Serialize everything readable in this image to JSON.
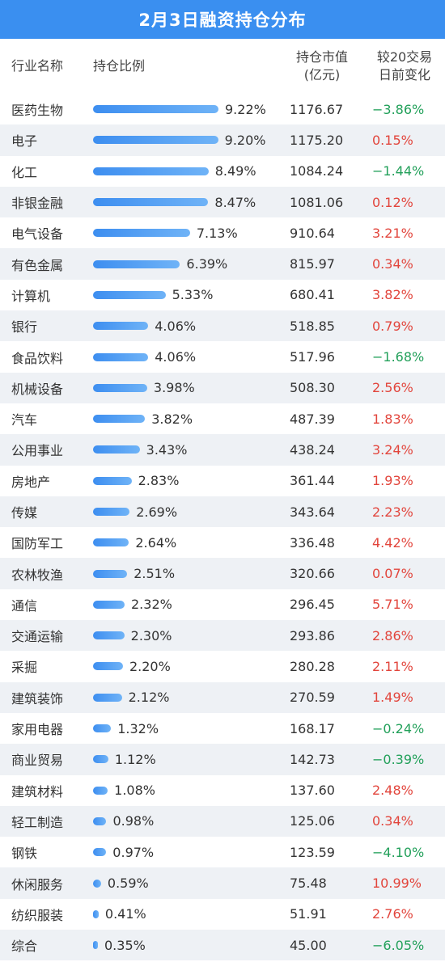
{
  "title": "2月3日融资持仓分布",
  "header": {
    "industry": "行业名称",
    "ratio": "持仓比例",
    "value_line1": "持仓市值",
    "value_line2": "(亿元)",
    "change_line1": "较20交易",
    "change_line2": "日前变化"
  },
  "colors": {
    "bar": "#3d8ef0",
    "up": "#e2453c",
    "down": "#22a05a",
    "title_bg": "#3a8ff0"
  },
  "chart_data": {
    "type": "bar",
    "title": "2月3日融资持仓分布",
    "categories": [
      "医药生物",
      "电子",
      "化工",
      "非银金融",
      "电气设备",
      "有色金属",
      "计算机",
      "银行",
      "食品饮料",
      "机械设备",
      "汽车",
      "公用事业",
      "房地产",
      "传媒",
      "国防军工",
      "农林牧渔",
      "通信",
      "交通运输",
      "采掘",
      "建筑装饰",
      "家用电器",
      "商业贸易",
      "建筑材料",
      "轻工制造",
      "钢铁",
      "休闲服务",
      "纺织服装",
      "综合"
    ],
    "ratio_labels": [
      "9.22%",
      "9.20%",
      "8.49%",
      "8.47%",
      "7.13%",
      "6.39%",
      "5.33%",
      "4.06%",
      "4.06%",
      "3.98%",
      "3.82%",
      "3.43%",
      "2.83%",
      "2.69%",
      "2.64%",
      "2.51%",
      "2.32%",
      "2.30%",
      "2.20%",
      "2.12%",
      "1.32%",
      "1.12%",
      "1.08%",
      "0.98%",
      "0.97%",
      "0.59%",
      "0.41%",
      "0.35%"
    ],
    "ratio_values": [
      9.22,
      9.2,
      8.49,
      8.47,
      7.13,
      6.39,
      5.33,
      4.06,
      4.06,
      3.98,
      3.82,
      3.43,
      2.83,
      2.69,
      2.64,
      2.51,
      2.32,
      2.3,
      2.2,
      2.12,
      1.32,
      1.12,
      1.08,
      0.98,
      0.97,
      0.59,
      0.41,
      0.35
    ],
    "market_values": [
      "1176.67",
      "1175.20",
      "1084.24",
      "1081.06",
      "910.64",
      "815.97",
      "680.41",
      "518.85",
      "517.96",
      "508.30",
      "487.39",
      "438.24",
      "361.44",
      "343.64",
      "336.48",
      "320.66",
      "296.45",
      "293.86",
      "280.28",
      "270.59",
      "168.17",
      "142.73",
      "137.60",
      "125.06",
      "123.59",
      "75.48",
      "51.91",
      "45.00"
    ],
    "changes": [
      "−3.86%",
      "0.15%",
      "−1.44%",
      "0.12%",
      "3.21%",
      "0.34%",
      "3.82%",
      "0.79%",
      "−1.68%",
      "2.56%",
      "1.83%",
      "3.24%",
      "1.93%",
      "2.23%",
      "4.42%",
      "0.07%",
      "5.71%",
      "2.86%",
      "2.11%",
      "1.49%",
      "−0.24%",
      "−0.39%",
      "2.48%",
      "0.34%",
      "−4.10%",
      "10.99%",
      "2.76%",
      "−6.05%"
    ]
  }
}
